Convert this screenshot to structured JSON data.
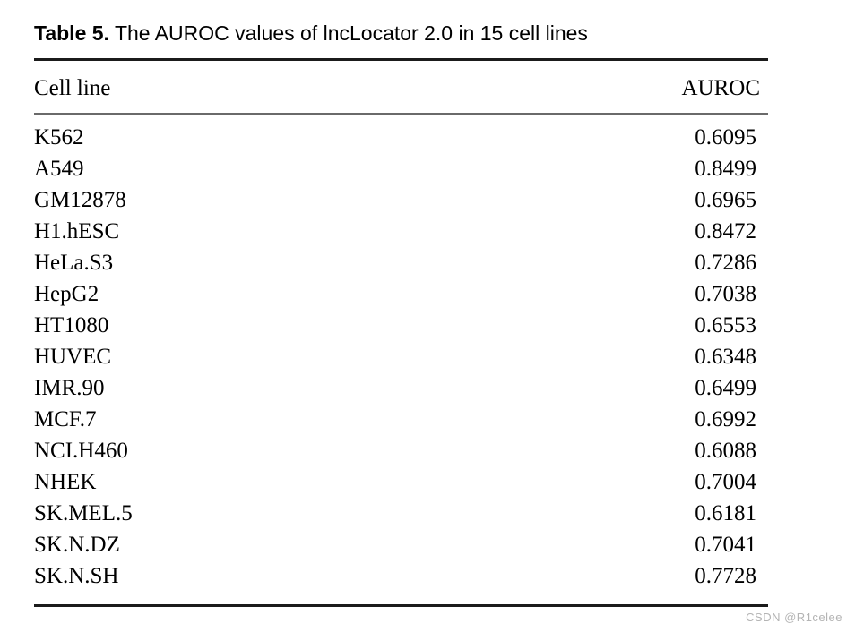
{
  "caption": {
    "label": "Table 5.",
    "text": "The AUROC values of lncLocator 2.0 in 15 cell lines"
  },
  "table": {
    "headers": {
      "cell_line": "Cell line",
      "auroc": "AUROC"
    },
    "rows": [
      {
        "cell_line": "K562",
        "auroc": "0.6095"
      },
      {
        "cell_line": "A549",
        "auroc": "0.8499"
      },
      {
        "cell_line": "GM12878",
        "auroc": "0.6965"
      },
      {
        "cell_line": "H1.hESC",
        "auroc": "0.8472"
      },
      {
        "cell_line": "HeLa.S3",
        "auroc": "0.7286"
      },
      {
        "cell_line": "HepG2",
        "auroc": "0.7038"
      },
      {
        "cell_line": "HT1080",
        "auroc": "0.6553"
      },
      {
        "cell_line": "HUVEC",
        "auroc": "0.6348"
      },
      {
        "cell_line": "IMR.90",
        "auroc": "0.6499"
      },
      {
        "cell_line": "MCF.7",
        "auroc": "0.6992"
      },
      {
        "cell_line": "NCI.H460",
        "auroc": "0.6088"
      },
      {
        "cell_line": "NHEK",
        "auroc": "0.7004"
      },
      {
        "cell_line": "SK.MEL.5",
        "auroc": "0.6181"
      },
      {
        "cell_line": "SK.N.DZ",
        "auroc": "0.7041"
      },
      {
        "cell_line": "SK.N.SH",
        "auroc": "0.7728"
      }
    ]
  },
  "watermark": {
    "text": "CSDN @R1celee"
  },
  "colors": {
    "background": "#ffffff",
    "text": "#000000",
    "rule_dark": "#1b1b1b",
    "rule_mid": "#6a6a6a",
    "watermark": "#b4b4b4"
  }
}
